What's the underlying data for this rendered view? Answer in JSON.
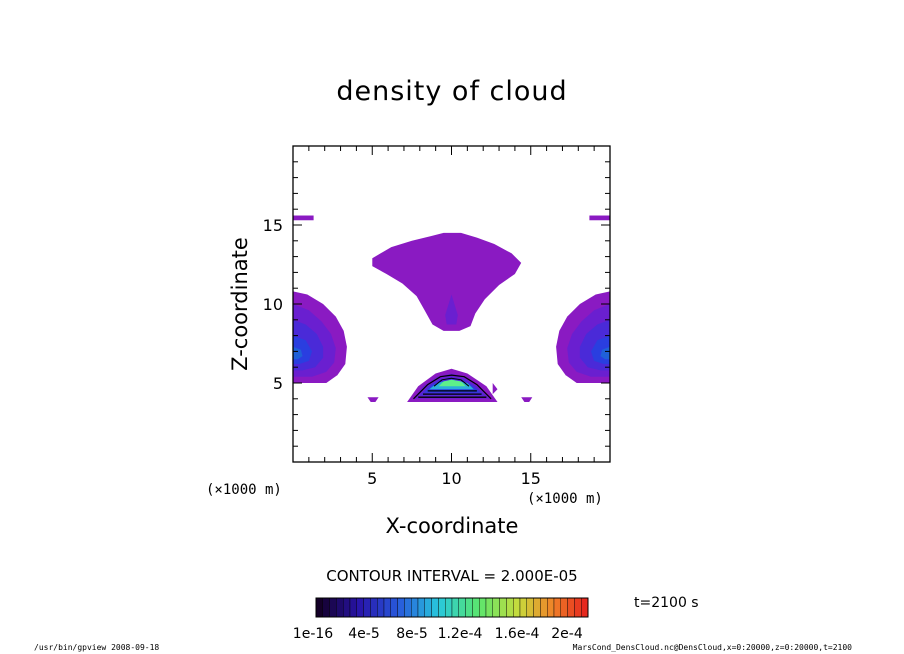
{
  "chart_data": {
    "type": "heatmap",
    "title": "density of cloud",
    "xlabel": "X-coordinate",
    "ylabel": "Z-coordinate",
    "x_unit": "(×1000 m)",
    "y_unit": "(×1000 m)",
    "xlim": [
      0,
      20
    ],
    "ylim": [
      0,
      20
    ],
    "x_ticks": [
      "5",
      "10",
      "15"
    ],
    "y_ticks": [
      "5",
      "10",
      "15"
    ],
    "contour_interval": "CONTOUR INTERVAL = 2.000E-05",
    "time_label": "t=2100 s",
    "colorbar_labels": [
      "1e-16",
      "4e-5",
      "8e-5",
      "1.2e-4",
      "1.6e-4",
      "2e-4"
    ],
    "colorbar_range": [
      1e-16,
      0.0002
    ],
    "regions": [
      {
        "name": "upper cloud",
        "x": [
          4.8,
          14.4
        ],
        "z": [
          8.3,
          14.5
        ],
        "max_value": 2e-05
      },
      {
        "name": "left edge cloud",
        "x": [
          0,
          3.4
        ],
        "z": [
          5.0,
          10.8
        ],
        "max_value": 6e-05
      },
      {
        "name": "right edge cloud",
        "x": [
          16.4,
          20
        ],
        "z": [
          5.0,
          10.8
        ],
        "max_value": 6e-05
      },
      {
        "name": "central cloud",
        "x": [
          7.2,
          12.9
        ],
        "z": [
          3.8,
          5.8
        ],
        "max_value": 0.00012
      }
    ],
    "colors": {
      "level1": "#8a1ac2",
      "level2": "#6a1fd0",
      "level3": "#4a2ad8",
      "level4": "#2a3ee0",
      "level5": "#1f60d8",
      "level6": "#2bb0d8",
      "level7": "#5ef08a"
    }
  },
  "footer": {
    "left": "/usr/bin/gpview  2008-09-18",
    "right": "MarsCond_DensCloud.nc@DensCloud,x=0:20000,z=0:20000,t=2100"
  }
}
